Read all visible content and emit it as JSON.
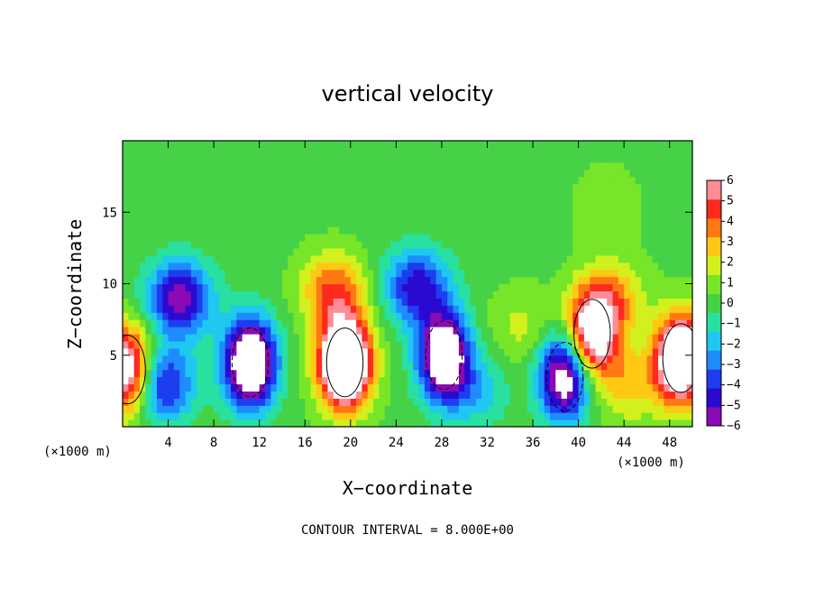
{
  "chart_data": {
    "type": "heatmap",
    "title": "vertical velocity",
    "xlabel": "X−coordinate",
    "ylabel": "Z−coordinate",
    "x_unit_left": "(×1000 m)",
    "x_unit_right": "(×1000 m)",
    "xlim": [
      0,
      50
    ],
    "ylim": [
      0,
      20
    ],
    "x_ticks": [
      4,
      8,
      12,
      16,
      20,
      24,
      28,
      32,
      36,
      40,
      44,
      48
    ],
    "y_ticks": [
      5,
      10,
      15
    ],
    "colorbar": {
      "range": [
        -6,
        6
      ],
      "ticks": [
        "6",
        "5",
        "4",
        "3",
        "2",
        "1",
        "0",
        "−1",
        "−2",
        "−3",
        "−4",
        "−5",
        "−6"
      ],
      "colors": [
        "#8b0ab5",
        "#2a0ad0",
        "#1e3cf0",
        "#1e8cff",
        "#1ec8f0",
        "#28e0a0",
        "#46d246",
        "#78e628",
        "#d2f01e",
        "#ffc814",
        "#ff7814",
        "#ff2a1e",
        "#ff8c96"
      ]
    },
    "contour_interval": "CONTOUR INTERVAL = 8.000E+00",
    "features": [
      {
        "x": 0.4,
        "z": 4.0,
        "value": 8
      },
      {
        "x": 5.0,
        "z": 9.0,
        "value": -6
      },
      {
        "x": 3.5,
        "z": 3.0,
        "value": -5
      },
      {
        "x": 11.2,
        "z": 4.5,
        "value": -10
      },
      {
        "x": 19.5,
        "z": 4.5,
        "value": 12
      },
      {
        "x": 18.5,
        "z": 9.5,
        "value": 4
      },
      {
        "x": 25.8,
        "z": 9.8,
        "value": -5
      },
      {
        "x": 28.2,
        "z": 5.0,
        "value": -9
      },
      {
        "x": 31.0,
        "z": 2.5,
        "value": -2
      },
      {
        "x": 35.0,
        "z": 7.0,
        "value": 1.5
      },
      {
        "x": 38.8,
        "z": 3.5,
        "value": -8
      },
      {
        "x": 41.2,
        "z": 6.5,
        "value": 8
      },
      {
        "x": 43.0,
        "z": 9.0,
        "value": 3
      },
      {
        "x": 44.5,
        "z": 3.0,
        "value": 2.5
      },
      {
        "x": 49.0,
        "z": 4.8,
        "value": 10
      },
      {
        "x": 42.5,
        "z": 15.5,
        "value": 1
      }
    ]
  }
}
